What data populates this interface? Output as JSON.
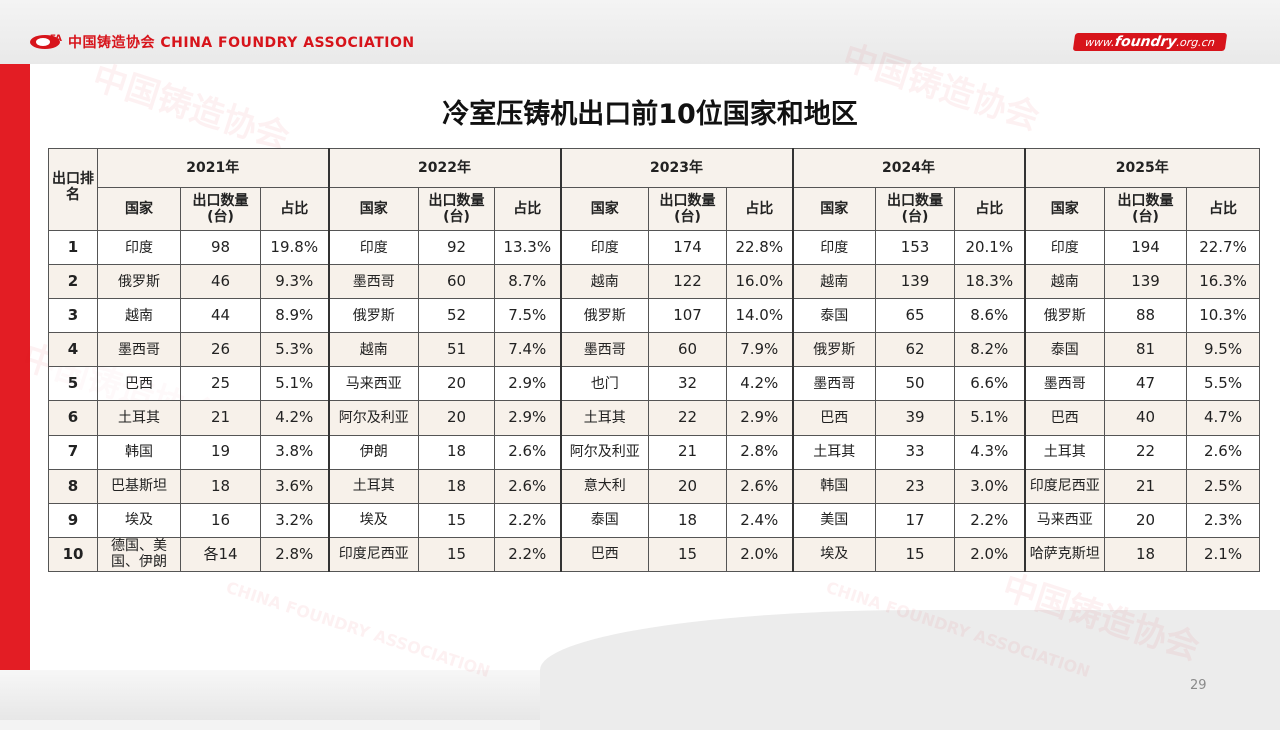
{
  "header": {
    "org_text": "中国铸造协会 CHINA FOUNDRY ASSOCIATION",
    "logo_mark_text": "FA",
    "url_prefix": "www.",
    "url_main": "foundry",
    "url_suffix": ".org.cn"
  },
  "watermark": {
    "cn": "中国铸造协会",
    "en": "CHINA FOUNDRY ASSOCIATION"
  },
  "title": "冷室压铸机出口前10位国家和地区",
  "table": {
    "rank_header": "出口排名",
    "years": [
      "2021年",
      "2022年",
      "2023年",
      "2024年",
      "2025年"
    ],
    "sub_headers": {
      "country": "国家",
      "qty": "出口数量(台)",
      "share": "占比"
    },
    "rows": [
      {
        "rank": "1",
        "cells": [
          [
            "印度",
            "98",
            "19.8%"
          ],
          [
            "印度",
            "92",
            "13.3%"
          ],
          [
            "印度",
            "174",
            "22.8%"
          ],
          [
            "印度",
            "153",
            "20.1%"
          ],
          [
            "印度",
            "194",
            "22.7%"
          ]
        ]
      },
      {
        "rank": "2",
        "cells": [
          [
            "俄罗斯",
            "46",
            "9.3%"
          ],
          [
            "墨西哥",
            "60",
            "8.7%"
          ],
          [
            "越南",
            "122",
            "16.0%"
          ],
          [
            "越南",
            "139",
            "18.3%"
          ],
          [
            "越南",
            "139",
            "16.3%"
          ]
        ]
      },
      {
        "rank": "3",
        "cells": [
          [
            "越南",
            "44",
            "8.9%"
          ],
          [
            "俄罗斯",
            "52",
            "7.5%"
          ],
          [
            "俄罗斯",
            "107",
            "14.0%"
          ],
          [
            "泰国",
            "65",
            "8.6%"
          ],
          [
            "俄罗斯",
            "88",
            "10.3%"
          ]
        ]
      },
      {
        "rank": "4",
        "cells": [
          [
            "墨西哥",
            "26",
            "5.3%"
          ],
          [
            "越南",
            "51",
            "7.4%"
          ],
          [
            "墨西哥",
            "60",
            "7.9%"
          ],
          [
            "俄罗斯",
            "62",
            "8.2%"
          ],
          [
            "泰国",
            "81",
            "9.5%"
          ]
        ]
      },
      {
        "rank": "5",
        "cells": [
          [
            "巴西",
            "25",
            "5.1%"
          ],
          [
            "马来西亚",
            "20",
            "2.9%"
          ],
          [
            "也门",
            "32",
            "4.2%"
          ],
          [
            "墨西哥",
            "50",
            "6.6%"
          ],
          [
            "墨西哥",
            "47",
            "5.5%"
          ]
        ]
      },
      {
        "rank": "6",
        "cells": [
          [
            "土耳其",
            "21",
            "4.2%"
          ],
          [
            "阿尔及利亚",
            "20",
            "2.9%"
          ],
          [
            "土耳其",
            "22",
            "2.9%"
          ],
          [
            "巴西",
            "39",
            "5.1%"
          ],
          [
            "巴西",
            "40",
            "4.7%"
          ]
        ]
      },
      {
        "rank": "7",
        "cells": [
          [
            "韩国",
            "19",
            "3.8%"
          ],
          [
            "伊朗",
            "18",
            "2.6%"
          ],
          [
            "阿尔及利亚",
            "21",
            "2.8%"
          ],
          [
            "土耳其",
            "33",
            "4.3%"
          ],
          [
            "土耳其",
            "22",
            "2.6%"
          ]
        ]
      },
      {
        "rank": "8",
        "cells": [
          [
            "巴基斯坦",
            "18",
            "3.6%"
          ],
          [
            "土耳其",
            "18",
            "2.6%"
          ],
          [
            "意大利",
            "20",
            "2.6%"
          ],
          [
            "韩国",
            "23",
            "3.0%"
          ],
          [
            "印度尼西亚",
            "21",
            "2.5%"
          ]
        ]
      },
      {
        "rank": "9",
        "cells": [
          [
            "埃及",
            "16",
            "3.2%"
          ],
          [
            "埃及",
            "15",
            "2.2%"
          ],
          [
            "泰国",
            "18",
            "2.4%"
          ],
          [
            "美国",
            "17",
            "2.2%"
          ],
          [
            "马来西亚",
            "20",
            "2.3%"
          ]
        ]
      },
      {
        "rank": "10",
        "cells": [
          [
            "德国、美国、伊朗",
            "各14",
            "2.8%"
          ],
          [
            "印度尼西亚",
            "15",
            "2.2%"
          ],
          [
            "巴西",
            "15",
            "2.0%"
          ],
          [
            "埃及",
            "15",
            "2.0%"
          ],
          [
            "哈萨克斯坦",
            "18",
            "2.1%"
          ]
        ]
      }
    ]
  },
  "page_number": "29"
}
